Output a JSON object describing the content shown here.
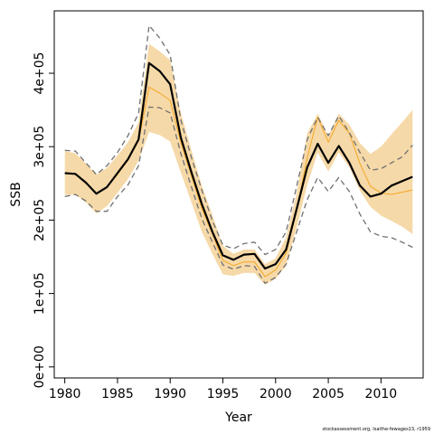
{
  "chart_data": {
    "type": "line",
    "xlabel": "Year",
    "ylabel": "SSB",
    "xlim": [
      1979,
      2014
    ],
    "ylim": [
      -15000,
      485000
    ],
    "x_ticks": [
      1980,
      1985,
      1990,
      1995,
      2000,
      2005,
      2010
    ],
    "y_ticks": [
      0,
      100000,
      200000,
      300000,
      400000
    ],
    "y_tick_labels": [
      "0e+00",
      "1e+05",
      "2e+05",
      "3e+05",
      "4e+05"
    ],
    "x": [
      1980,
      1981,
      1982,
      1983,
      1984,
      1985,
      1986,
      1987,
      1988,
      1989,
      1990,
      1991,
      1992,
      1993,
      1994,
      1995,
      1996,
      1997,
      1998,
      1999,
      2000,
      2001,
      2002,
      2003,
      2004,
      2005,
      2006,
      2007,
      2008,
      2009,
      2010,
      2011,
      2012,
      2013
    ],
    "series": [
      {
        "role": "estimate",
        "color": "#000000",
        "values": [
          264000,
          263000,
          251000,
          236000,
          245000,
          264000,
          283000,
          310000,
          414000,
          403000,
          385000,
          313000,
          266000,
          222000,
          184000,
          152000,
          146000,
          153000,
          154000,
          134000,
          140000,
          160000,
          215000,
          272000,
          304000,
          278000,
          301000,
          278000,
          247000,
          232000,
          236000,
          247000,
          253000,
          259000
        ]
      },
      {
        "role": "lower-bound",
        "color": "#707070",
        "dashed": true,
        "values": [
          232000,
          235000,
          226000,
          212000,
          212000,
          232000,
          248000,
          274000,
          354000,
          353000,
          346000,
          291000,
          246000,
          202000,
          170000,
          139000,
          133000,
          138000,
          137000,
          114000,
          122000,
          140000,
          184000,
          228000,
          258000,
          239000,
          258000,
          239000,
          208000,
          184000,
          178000,
          176000,
          170000,
          163000
        ]
      },
      {
        "role": "upper-bound",
        "color": "#707070",
        "dashed": true,
        "values": [
          295000,
          294000,
          278000,
          262000,
          274000,
          292000,
          315000,
          346000,
          465000,
          448000,
          425000,
          337000,
          286000,
          241000,
          199000,
          166000,
          161000,
          168000,
          170000,
          153000,
          160000,
          184000,
          246000,
          310000,
          340000,
          315000,
          342000,
          319000,
          292000,
          268000,
          270000,
          278000,
          286000,
          302000
        ]
      },
      {
        "role": "alternative-estimate",
        "color": "#f5a623",
        "values": [
          264000,
          263000,
          251000,
          236000,
          245000,
          262000,
          282000,
          308000,
          381000,
          373000,
          363000,
          306000,
          261000,
          216000,
          181000,
          145000,
          138000,
          143000,
          143000,
          123000,
          132000,
          155000,
          213000,
          285000,
          340000,
          306000,
          336000,
          318000,
          277000,
          246000,
          237000,
          235000,
          238000,
          241000
        ]
      }
    ],
    "band": {
      "role": "confidence-band",
      "color": "#f6d9a8",
      "lower": [
        234000,
        235000,
        224000,
        209000,
        219000,
        237000,
        256000,
        281000,
        320000,
        316000,
        307000,
        265000,
        225000,
        184000,
        154000,
        126000,
        124000,
        128000,
        128000,
        112000,
        120000,
        138000,
        190000,
        248000,
        292000,
        266000,
        292000,
        272000,
        240000,
        218000,
        206000,
        199000,
        191000,
        181000
      ],
      "upper": [
        294000,
        291000,
        277000,
        262000,
        271000,
        288000,
        306000,
        333000,
        440000,
        430000,
        418000,
        347000,
        296000,
        247000,
        207000,
        165000,
        154000,
        160000,
        160000,
        140000,
        148000,
        177000,
        237000,
        318000,
        345000,
        315000,
        345000,
        330000,
        305000,
        290000,
        300000,
        317000,
        333000,
        350000
      ]
    }
  },
  "footer": {
    "note": "stockassessment.org, Isaithe-fewages13, r1959"
  }
}
